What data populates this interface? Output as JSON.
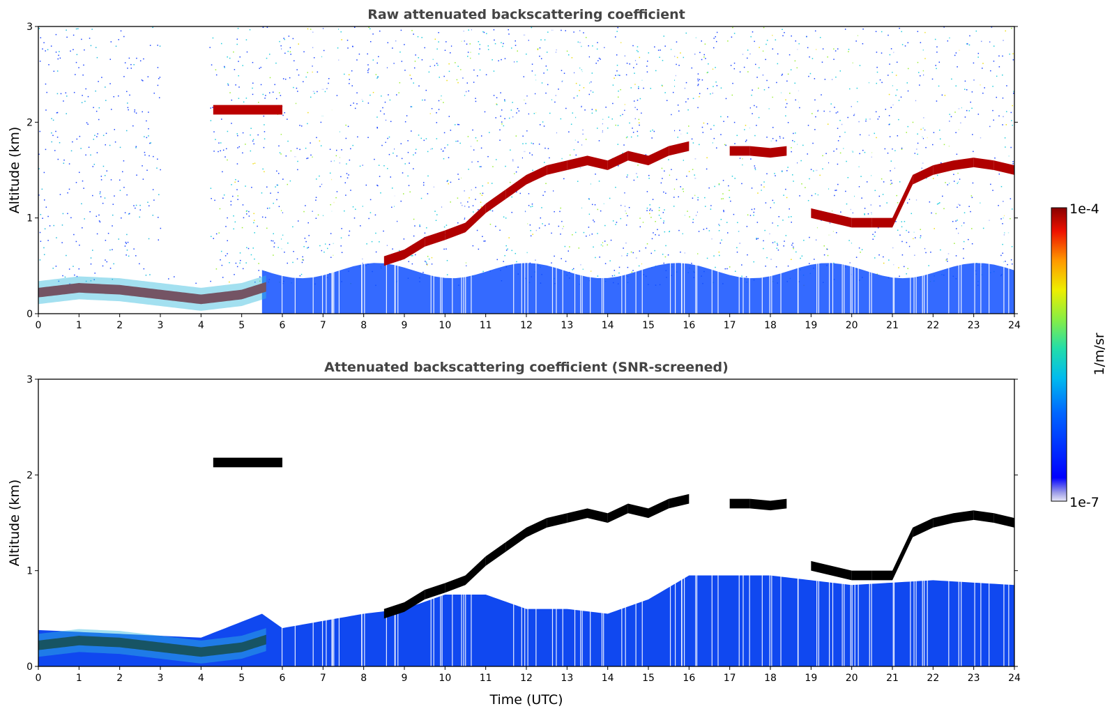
{
  "chart_data": [
    {
      "type": "heatmap",
      "title": "Raw attenuated backscattering coefficient",
      "xlabel": "",
      "ylabel": "Altitude (km)",
      "xlim": [
        0,
        24
      ],
      "ylim": [
        0,
        3
      ],
      "x_ticks": [
        "0",
        "1",
        "2",
        "3",
        "4",
        "5",
        "6",
        "7",
        "8",
        "9",
        "10",
        "11",
        "12",
        "13",
        "14",
        "15",
        "16",
        "17",
        "18",
        "19",
        "20",
        "21",
        "22",
        "23",
        "24"
      ],
      "y_ticks": [
        "0",
        "1",
        "2",
        "3"
      ],
      "grid": false,
      "features": {
        "boundary_layer": {
          "time": [
            0,
            1,
            2,
            3,
            4,
            5,
            5.6
          ],
          "altitude": [
            0.22,
            0.27,
            0.25,
            0.2,
            0.15,
            0.2,
            0.28
          ]
        },
        "elevated_layer": {
          "time_range": [
            4.3,
            6.0
          ],
          "altitude": 2.13
        },
        "cloud_base": {
          "time": [
            8.5,
            9,
            9.5,
            10,
            10.5,
            11,
            11.5,
            12,
            12.5,
            13,
            13.5,
            14,
            14.5,
            15,
            15.5,
            16,
            17,
            17.5,
            18,
            18.4,
            19,
            19.5,
            20,
            20.5,
            21,
            21.5,
            22,
            22.5,
            23,
            23.5,
            24
          ],
          "altitude": [
            0.55,
            0.62,
            0.75,
            0.82,
            0.9,
            1.1,
            1.25,
            1.4,
            1.5,
            1.55,
            1.6,
            1.55,
            1.65,
            1.6,
            1.7,
            1.75,
            1.7,
            1.7,
            1.68,
            1.7,
            1.05,
            1.0,
            0.95,
            0.95,
            0.95,
            1.4,
            1.5,
            1.55,
            1.58,
            1.55,
            1.5
          ]
        },
        "low_signal_gap": {
          "time_range": [
            3.0,
            4.2
          ],
          "altitude_range": [
            0.45,
            3.0
          ]
        }
      }
    },
    {
      "type": "heatmap",
      "title": "Attenuated backscattering coefficient (SNR-screened)",
      "xlabel": "Time (UTC)",
      "ylabel": "Altitude (km)",
      "xlim": [
        0,
        24
      ],
      "ylim": [
        0,
        3
      ],
      "x_ticks": [
        "0",
        "1",
        "2",
        "3",
        "4",
        "5",
        "6",
        "7",
        "8",
        "9",
        "10",
        "11",
        "12",
        "13",
        "14",
        "15",
        "16",
        "17",
        "18",
        "19",
        "20",
        "21",
        "22",
        "23",
        "24"
      ],
      "y_ticks": [
        "0",
        "1",
        "2",
        "3"
      ],
      "grid": false,
      "features": {
        "screened_top": {
          "time": [
            0,
            4,
            5.5,
            6,
            8,
            9,
            10,
            11,
            12,
            13,
            14,
            15,
            15.8,
            16,
            18,
            20,
            22,
            24
          ],
          "altitude": [
            0.38,
            0.3,
            0.55,
            0.4,
            0.55,
            0.6,
            0.75,
            0.75,
            0.6,
            0.6,
            0.55,
            0.7,
            0.9,
            0.95,
            0.95,
            0.85,
            0.9,
            0.85
          ]
        }
      }
    }
  ],
  "colorbar": {
    "label": "1/m/sr",
    "max_label": "1e-4",
    "min_label": "1e-7",
    "scale": "log",
    "range": [
      1e-07,
      0.0001
    ],
    "colormap": "jet"
  }
}
